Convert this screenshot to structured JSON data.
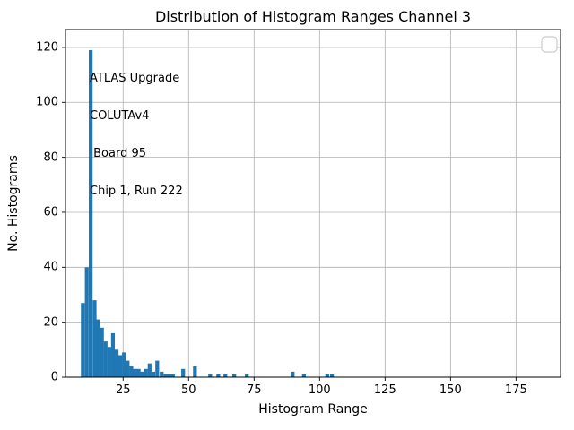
{
  "figure": {
    "background": "#ffffff"
  },
  "chart_data": {
    "type": "bar",
    "title": "Distribution of Histogram Ranges Channel 3",
    "xlabel": "Histogram Range",
    "ylabel": "No. Histograms",
    "xlim": [
      3,
      192
    ],
    "ylim": [
      0,
      126.5
    ],
    "xticks": [
      25,
      50,
      75,
      100,
      125,
      150,
      175
    ],
    "yticks": [
      0,
      20,
      40,
      60,
      80,
      100,
      120
    ],
    "grid": true,
    "legend_position": "upper right",
    "legend_empty": true,
    "bar_color": "#1f77b4",
    "grid_color": "#b0b0b0",
    "spine_color": "#000000",
    "legend_border_color": "#cccccc",
    "bin_width": 1.45,
    "bars": [
      [
        8.9,
        27
      ],
      [
        10.4,
        40
      ],
      [
        11.9,
        119
      ],
      [
        13.4,
        28
      ],
      [
        14.8,
        21
      ],
      [
        16.2,
        18
      ],
      [
        17.6,
        13
      ],
      [
        19.0,
        11
      ],
      [
        20.4,
        16
      ],
      [
        21.8,
        10
      ],
      [
        23.2,
        8
      ],
      [
        24.6,
        9
      ],
      [
        26.0,
        6
      ],
      [
        27.4,
        4
      ],
      [
        28.8,
        3
      ],
      [
        30.2,
        3
      ],
      [
        31.6,
        2
      ],
      [
        33.0,
        3
      ],
      [
        34.4,
        5
      ],
      [
        35.8,
        2
      ],
      [
        37.3,
        6
      ],
      [
        39.0,
        2
      ],
      [
        40.5,
        1
      ],
      [
        41.9,
        1
      ],
      [
        43.3,
        1
      ],
      [
        47.2,
        3
      ],
      [
        51.7,
        4
      ],
      [
        57.5,
        1
      ],
      [
        60.6,
        1
      ],
      [
        63.3,
        1
      ],
      [
        66.7,
        1
      ],
      [
        71.5,
        1
      ],
      [
        89.0,
        2
      ],
      [
        93.3,
        1
      ],
      [
        102.2,
        1
      ],
      [
        104.0,
        1
      ]
    ],
    "annotation_lines": [
      "ATLAS Upgrade",
      "COLUTAv4",
      " Board 95",
      "Chip 1, Run 222"
    ]
  }
}
